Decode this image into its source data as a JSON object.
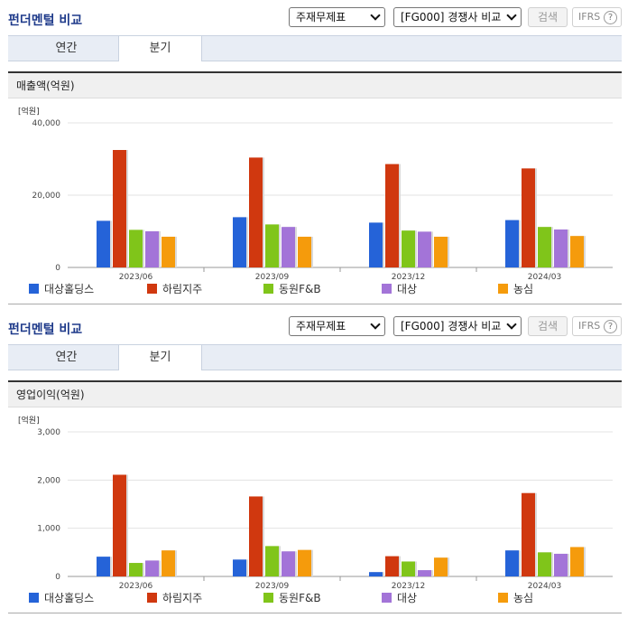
{
  "common": {
    "title": "펀더멘털 비교",
    "select_report": "주재무제표",
    "select_compare": "[FG000] 경쟁사 비교",
    "search_label": "검색",
    "ifrs_label": "IFRS",
    "help_glyph": "?",
    "tabs": [
      "연간",
      "분기"
    ],
    "active_tab": "분기",
    "unit_label": "[억원]"
  },
  "series_meta": [
    {
      "name": "대상홀딩스",
      "color": "#2563d8"
    },
    {
      "name": "하림지주",
      "color": "#d0380f"
    },
    {
      "name": "동원F&B",
      "color": "#80c51a"
    },
    {
      "name": "대상",
      "color": "#a374d8"
    },
    {
      "name": "농심",
      "color": "#f59b0c"
    }
  ],
  "chart_data": [
    {
      "type": "bar",
      "title": "매출액(억원)",
      "ylabel": "[억원]",
      "categories": [
        "2023/06",
        "2023/09",
        "2023/12",
        "2024/03"
      ],
      "yticks": [
        "0",
        "20,000",
        "40,000"
      ],
      "ylim": [
        0,
        40000
      ],
      "series": [
        {
          "name": "대상홀딩스",
          "values": [
            12900,
            13900,
            12400,
            13100
          ]
        },
        {
          "name": "하림지주",
          "values": [
            32500,
            30400,
            28600,
            27400
          ]
        },
        {
          "name": "동원F&B",
          "values": [
            10400,
            11900,
            10200,
            11200
          ]
        },
        {
          "name": "대상",
          "values": [
            10000,
            11200,
            9900,
            10500
          ]
        },
        {
          "name": "농심",
          "values": [
            8500,
            8500,
            8500,
            8700
          ]
        }
      ],
      "grid": true,
      "legend": "bottom"
    },
    {
      "type": "bar",
      "title": "영업이익(억원)",
      "ylabel": "[억원]",
      "categories": [
        "2023/06",
        "2023/09",
        "2023/12",
        "2024/03"
      ],
      "yticks": [
        "0",
        "1,000",
        "2,000",
        "3,000"
      ],
      "ylim": [
        0,
        3000
      ],
      "series": [
        {
          "name": "대상홀딩스",
          "values": [
            410,
            350,
            90,
            540
          ]
        },
        {
          "name": "하림지주",
          "values": [
            2110,
            1660,
            420,
            1730
          ]
        },
        {
          "name": "동원F&B",
          "values": [
            280,
            630,
            310,
            500
          ]
        },
        {
          "name": "대상",
          "values": [
            330,
            520,
            130,
            470
          ]
        },
        {
          "name": "농심",
          "values": [
            540,
            550,
            390,
            610
          ]
        }
      ],
      "grid": true,
      "legend": "bottom"
    }
  ]
}
